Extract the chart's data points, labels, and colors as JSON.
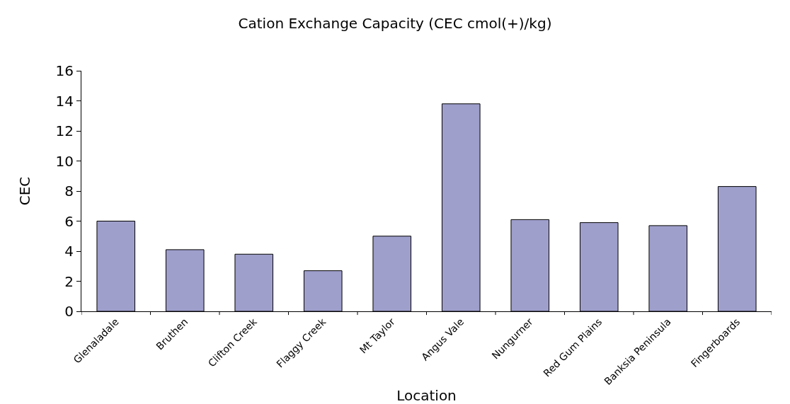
{
  "chart_data": {
    "type": "bar",
    "title": "Cation Exchange Capacity (CEC cmol(+)/kg)",
    "xlabel": "Location",
    "ylabel": "CEC",
    "categories": [
      "Glenaladale",
      "Bruthen",
      "Clifton Creek",
      "Flaggy Creek",
      "Mt Taylor",
      "Angus Vale",
      "Nungurner",
      "Red Gum Plains",
      "Banksia Peninsula",
      "Fingerboards"
    ],
    "values": [
      6.0,
      4.1,
      3.8,
      2.7,
      5.0,
      13.8,
      6.1,
      5.9,
      5.7,
      8.3
    ],
    "color": "#9f9fcc",
    "ylim": [
      0,
      16
    ],
    "yticks": [
      0,
      2,
      4,
      6,
      8,
      10,
      12,
      14,
      16
    ]
  }
}
